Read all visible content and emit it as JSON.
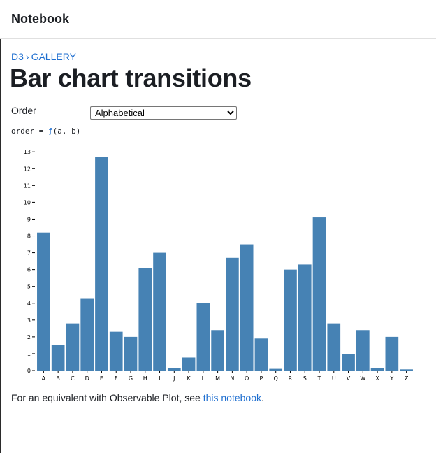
{
  "app": {
    "title": "Notebook"
  },
  "breadcrumb": {
    "items": [
      "D3",
      "GALLERY"
    ],
    "separator": "›"
  },
  "page": {
    "title": "Bar chart transitions"
  },
  "order": {
    "label": "Order",
    "selected": "Alphabetical",
    "code_prefix": "order = ",
    "code_fn": "ƒ",
    "code_suffix": "(a, b)"
  },
  "chart_data": {
    "type": "bar",
    "categories": [
      "A",
      "B",
      "C",
      "D",
      "E",
      "F",
      "G",
      "H",
      "I",
      "J",
      "K",
      "L",
      "M",
      "N",
      "O",
      "P",
      "Q",
      "R",
      "S",
      "T",
      "U",
      "V",
      "W",
      "X",
      "Y",
      "Z"
    ],
    "values": [
      8.2,
      1.5,
      2.8,
      4.3,
      12.7,
      2.3,
      2.0,
      6.1,
      7.0,
      0.15,
      0.77,
      4.0,
      2.4,
      6.7,
      7.5,
      1.9,
      0.1,
      6.0,
      6.3,
      9.1,
      2.8,
      0.98,
      2.4,
      0.15,
      2.0,
      0.07
    ],
    "yticks": [
      "0",
      "1",
      "2",
      "3",
      "4",
      "5",
      "6",
      "7",
      "8",
      "9",
      "10",
      "11",
      "12",
      "13"
    ],
    "ylim": [
      0,
      13.3
    ],
    "bar_color": "#4682b4",
    "grid": false
  },
  "footnote": {
    "text": "For an equivalent with Observable Plot, see ",
    "link": "this notebook",
    "end": "."
  }
}
